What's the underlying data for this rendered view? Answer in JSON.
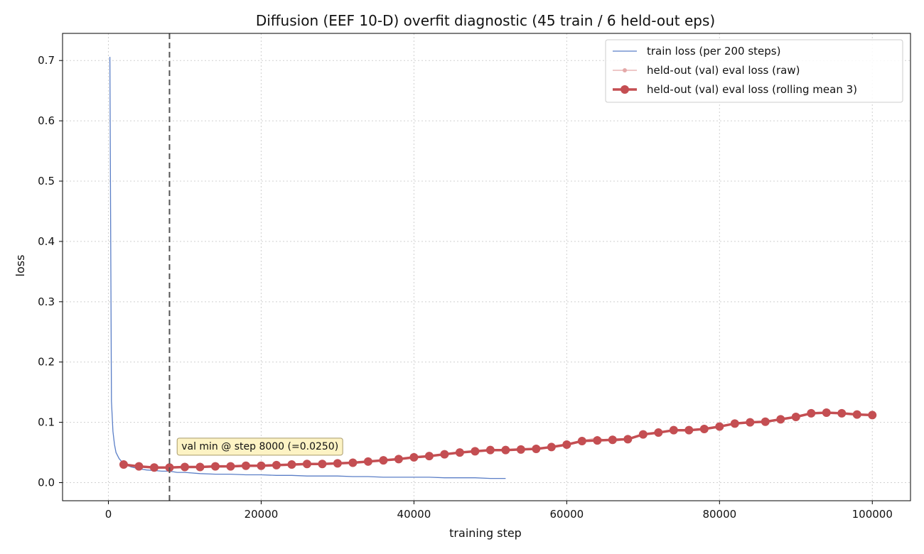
{
  "chart_data": {
    "type": "line",
    "title": "Diffusion (EEF 10-D) overfit diagnostic (45 train / 6 held-out eps)",
    "xlabel": "training step",
    "ylabel": "loss",
    "xlim": [
      -6000,
      105000
    ],
    "ylim": [
      -0.03,
      0.745
    ],
    "x_ticks": [
      0,
      20000,
      40000,
      60000,
      80000,
      100000
    ],
    "x_tick_labels": [
      "0",
      "20000",
      "40000",
      "60000",
      "80000",
      "100000"
    ],
    "y_ticks": [
      0.0,
      0.1,
      0.2,
      0.3,
      0.4,
      0.5,
      0.6,
      0.7
    ],
    "y_tick_labels": [
      "0.0",
      "0.1",
      "0.2",
      "0.3",
      "0.4",
      "0.5",
      "0.6",
      "0.7"
    ],
    "grid": true,
    "legend_position": "top-right",
    "vline": {
      "x": 8000,
      "style": "dashed",
      "color": "#555555"
    },
    "annotation": {
      "text": "val min @ step 8000 (=0.0250)",
      "x": 9000,
      "y": 0.055
    },
    "series": [
      {
        "name": "train loss (per 200 steps)",
        "color": "#5b7fc7",
        "style": "thin-line",
        "x": [
          200,
          400,
          600,
          800,
          1000,
          1400,
          2000,
          3000,
          4000,
          5000,
          6000,
          7000,
          8000,
          9000,
          10000,
          12000,
          14000,
          16000,
          18000,
          20000,
          22000,
          24000,
          26000,
          28000,
          30000,
          32000,
          34000,
          36000,
          38000,
          40000,
          42000,
          44000,
          46000,
          48000,
          50000,
          52000
        ],
        "y": [
          0.706,
          0.135,
          0.085,
          0.063,
          0.05,
          0.04,
          0.031,
          0.026,
          0.023,
          0.021,
          0.02,
          0.019,
          0.019,
          0.017,
          0.017,
          0.015,
          0.014,
          0.014,
          0.013,
          0.013,
          0.012,
          0.012,
          0.011,
          0.011,
          0.011,
          0.01,
          0.01,
          0.009,
          0.009,
          0.009,
          0.009,
          0.008,
          0.008,
          0.008,
          0.007,
          0.007
        ]
      },
      {
        "name": "held-out (val) eval loss (raw)",
        "color": "#e4a8a8",
        "style": "faint-line-markers",
        "x": [
          2000,
          4000,
          6000,
          8000,
          10000,
          12000,
          14000,
          16000,
          18000,
          20000,
          22000,
          24000,
          26000,
          28000,
          30000,
          32000,
          34000,
          36000,
          38000,
          40000,
          42000,
          44000,
          46000,
          48000,
          50000,
          52000,
          54000,
          56000,
          58000,
          60000,
          62000,
          64000,
          66000,
          68000,
          70000,
          72000,
          74000,
          76000,
          78000,
          80000,
          82000,
          84000,
          86000,
          88000,
          90000,
          92000,
          94000,
          96000,
          98000,
          100000
        ],
        "y": [
          0.031,
          0.027,
          0.025,
          0.025,
          0.027,
          0.026,
          0.027,
          0.028,
          0.028,
          0.028,
          0.029,
          0.03,
          0.031,
          0.032,
          0.032,
          0.034,
          0.035,
          0.037,
          0.039,
          0.042,
          0.044,
          0.047,
          0.05,
          0.052,
          0.054,
          0.055,
          0.055,
          0.055,
          0.059,
          0.064,
          0.07,
          0.074,
          0.068,
          0.072,
          0.08,
          0.083,
          0.087,
          0.086,
          0.089,
          0.093,
          0.098,
          0.101,
          0.101,
          0.105,
          0.109,
          0.116,
          0.116,
          0.115,
          0.112,
          0.112
        ]
      },
      {
        "name": "held-out (val) eval loss (rolling mean 3)",
        "color": "#c44e52",
        "style": "thick-line-markers",
        "x": [
          2000,
          4000,
          6000,
          8000,
          10000,
          12000,
          14000,
          16000,
          18000,
          20000,
          22000,
          24000,
          26000,
          28000,
          30000,
          32000,
          34000,
          36000,
          38000,
          40000,
          42000,
          44000,
          46000,
          48000,
          50000,
          52000,
          54000,
          56000,
          58000,
          60000,
          62000,
          64000,
          66000,
          68000,
          70000,
          72000,
          74000,
          76000,
          78000,
          80000,
          82000,
          84000,
          86000,
          88000,
          90000,
          92000,
          94000,
          96000,
          98000,
          100000
        ],
        "y": [
          0.03,
          0.027,
          0.025,
          0.025,
          0.026,
          0.026,
          0.027,
          0.027,
          0.028,
          0.028,
          0.029,
          0.03,
          0.031,
          0.031,
          0.032,
          0.033,
          0.035,
          0.037,
          0.039,
          0.042,
          0.044,
          0.047,
          0.05,
          0.052,
          0.054,
          0.054,
          0.055,
          0.056,
          0.059,
          0.063,
          0.069,
          0.07,
          0.071,
          0.072,
          0.08,
          0.083,
          0.087,
          0.087,
          0.089,
          0.093,
          0.098,
          0.1,
          0.101,
          0.105,
          0.109,
          0.115,
          0.116,
          0.115,
          0.113,
          0.112
        ]
      }
    ]
  }
}
